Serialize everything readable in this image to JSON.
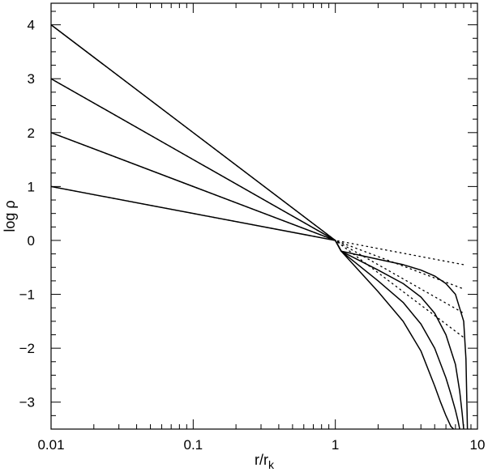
{
  "chart_data": {
    "type": "line",
    "x_scale": "log",
    "xlim": [
      0.01,
      10
    ],
    "ylim": [
      -3.5,
      4.4
    ],
    "x_ticks": [
      {
        "value": 0.01,
        "label": "0.01"
      },
      {
        "value": 0.1,
        "label": "0.1"
      },
      {
        "value": 1,
        "label": "1"
      },
      {
        "value": 10,
        "label": "10"
      }
    ],
    "y_ticks": [
      {
        "value": -3,
        "label": "−3"
      },
      {
        "value": -2,
        "label": "−2"
      },
      {
        "value": -1,
        "label": "−1"
      },
      {
        "value": 0,
        "label": "0"
      },
      {
        "value": 1,
        "label": "1"
      },
      {
        "value": 2,
        "label": "2"
      },
      {
        "value": 3,
        "label": "3"
      },
      {
        "value": 4,
        "label": "4"
      }
    ],
    "xlabel": "r/r",
    "xlabel_sub": "k",
    "ylabel": "log ρ",
    "grid": false,
    "legend": "none",
    "series": [
      {
        "style": "solid",
        "x": [
          0.01,
          0.1,
          1,
          1.1,
          2,
          3,
          4,
          5,
          6,
          7,
          8,
          8.3,
          8.5
        ],
        "y": [
          1,
          0.5,
          0.0,
          -0.2,
          -0.35,
          -0.45,
          -0.55,
          -0.66,
          -0.8,
          -1.0,
          -1.5,
          -2.2,
          -3.5
        ]
      },
      {
        "style": "solid",
        "x": [
          0.01,
          0.1,
          1,
          1.1,
          2,
          3,
          4,
          5,
          6,
          7,
          7.5,
          7.8,
          8.0
        ],
        "y": [
          2,
          1.0,
          0.0,
          -0.2,
          -0.55,
          -0.8,
          -1.05,
          -1.35,
          -1.75,
          -2.3,
          -2.8,
          -3.2,
          -3.5
        ]
      },
      {
        "style": "solid",
        "x": [
          0.01,
          0.1,
          1,
          1.1,
          2,
          3,
          4,
          5,
          6,
          6.5,
          7.0,
          7.3,
          7.5
        ],
        "y": [
          3,
          1.5,
          0.0,
          -0.2,
          -0.75,
          -1.15,
          -1.55,
          -2.0,
          -2.55,
          -2.85,
          -3.15,
          -3.35,
          -3.5
        ]
      },
      {
        "style": "solid",
        "x": [
          0.01,
          0.1,
          1,
          1.1,
          2,
          3,
          4,
          5,
          5.5,
          6.0,
          6.5,
          6.8
        ],
        "y": [
          4,
          2.0,
          0.0,
          -0.2,
          -0.95,
          -1.5,
          -2.05,
          -2.7,
          -3.0,
          -3.25,
          -3.45,
          -3.5
        ]
      },
      {
        "style": "dotted",
        "x": [
          0.01,
          1,
          8
        ],
        "y": [
          1,
          0.0,
          -0.45
        ]
      },
      {
        "style": "dotted",
        "x": [
          0.01,
          1,
          8
        ],
        "y": [
          2,
          0.0,
          -0.9
        ]
      },
      {
        "style": "dotted",
        "x": [
          0.01,
          1,
          8
        ],
        "y": [
          3,
          0.0,
          -1.35
        ]
      },
      {
        "style": "dotted",
        "x": [
          0.01,
          1,
          8
        ],
        "y": [
          4,
          0.0,
          -1.8
        ]
      }
    ]
  }
}
